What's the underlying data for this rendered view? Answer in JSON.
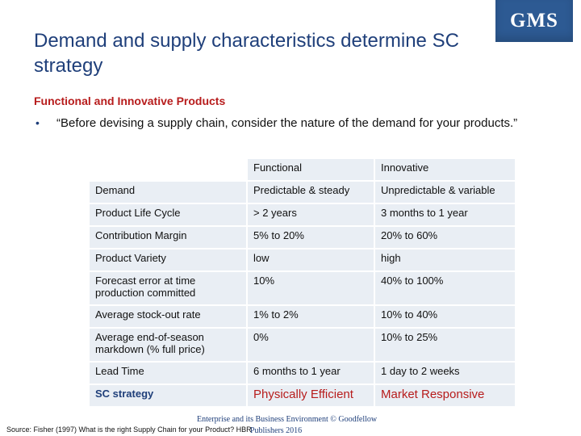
{
  "slide": {
    "title": "Demand and supply characteristics determine SC strategy",
    "logo": "GMS",
    "subheading": "Functional and Innovative Products",
    "bullet": "“Before devising a supply chain, consider the nature of the demand for your products.”"
  },
  "table": {
    "headers": [
      "",
      "Functional",
      "Innovative"
    ],
    "rows": [
      {
        "label": "Demand",
        "functional": "Predictable & steady",
        "innovative": "Unpredictable & variable"
      },
      {
        "label": "Product Life Cycle",
        "functional": "> 2 years",
        "innovative": "3 months to 1 year"
      },
      {
        "label": "Contribution Margin",
        "functional": "5% to 20%",
        "innovative": "20% to 60%"
      },
      {
        "label": "Product Variety",
        "functional": "low",
        "innovative": "high"
      },
      {
        "label": "Forecast error at time production committed",
        "functional": "10%",
        "innovative": "40% to 100%"
      },
      {
        "label": "Average stock-out rate",
        "functional": "1% to 2%",
        "innovative": "10% to 40%"
      },
      {
        "label": "Average end-of-season markdown (% full price)",
        "functional": "0%",
        "innovative": "10% to 25%"
      },
      {
        "label": "Lead Time",
        "functional": "6 months to 1 year",
        "innovative": "1 day to 2 weeks"
      },
      {
        "label": "SC strategy",
        "functional": "Physically Efficient",
        "innovative": "Market Responsive"
      }
    ]
  },
  "footer": {
    "line1": "Enterprise and its Business Environment © Goodfellow",
    "source": "Source: Fisher (1997) What is the right Supply Chain for your Product? HBR",
    "publishers": "Publishers 2016"
  },
  "colors": {
    "title": "#1f3f7a",
    "accent_red": "#b71c1c",
    "logo_bg": "#2d5a93",
    "table_bg": "#e9eef4"
  }
}
